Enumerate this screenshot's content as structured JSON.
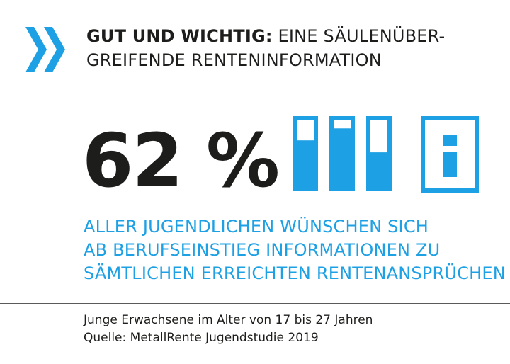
{
  "header": {
    "icon": "double-chevron-right-icon",
    "title_bold": "GUT UND WICHTIG:",
    "title_rest_line1": "EINE SÄULENÜBER-",
    "title_line2": "GREIFENDE RENTENINFORMATION"
  },
  "stat": {
    "value": 62,
    "display": "62 %"
  },
  "illustration": {
    "bar_icon": "filled-columns-icon",
    "bar_fill_levels": [
      0.7,
      0.88,
      0.52
    ],
    "info_icon": "info-icon",
    "accent_color": "#1ea0e4"
  },
  "statement": {
    "lines": [
      "ALLER JUGENDLICHEN WÜNSCHEN SICH",
      "AB BERUFSEINSTIEG INFORMATIONEN ZU",
      "SÄMTLICHEN ERREICHTEN RENTENANSPRÜCHEN"
    ]
  },
  "footer": {
    "line1": "Junge Erwachsene im Alter von 17 bis 27 Jahren",
    "line2": "Quelle: MetallRente Jugendstudie 2019"
  },
  "colors": {
    "text": "#1d1d1b",
    "accent": "#1ea0e4",
    "divider": "#5a5a5a"
  }
}
